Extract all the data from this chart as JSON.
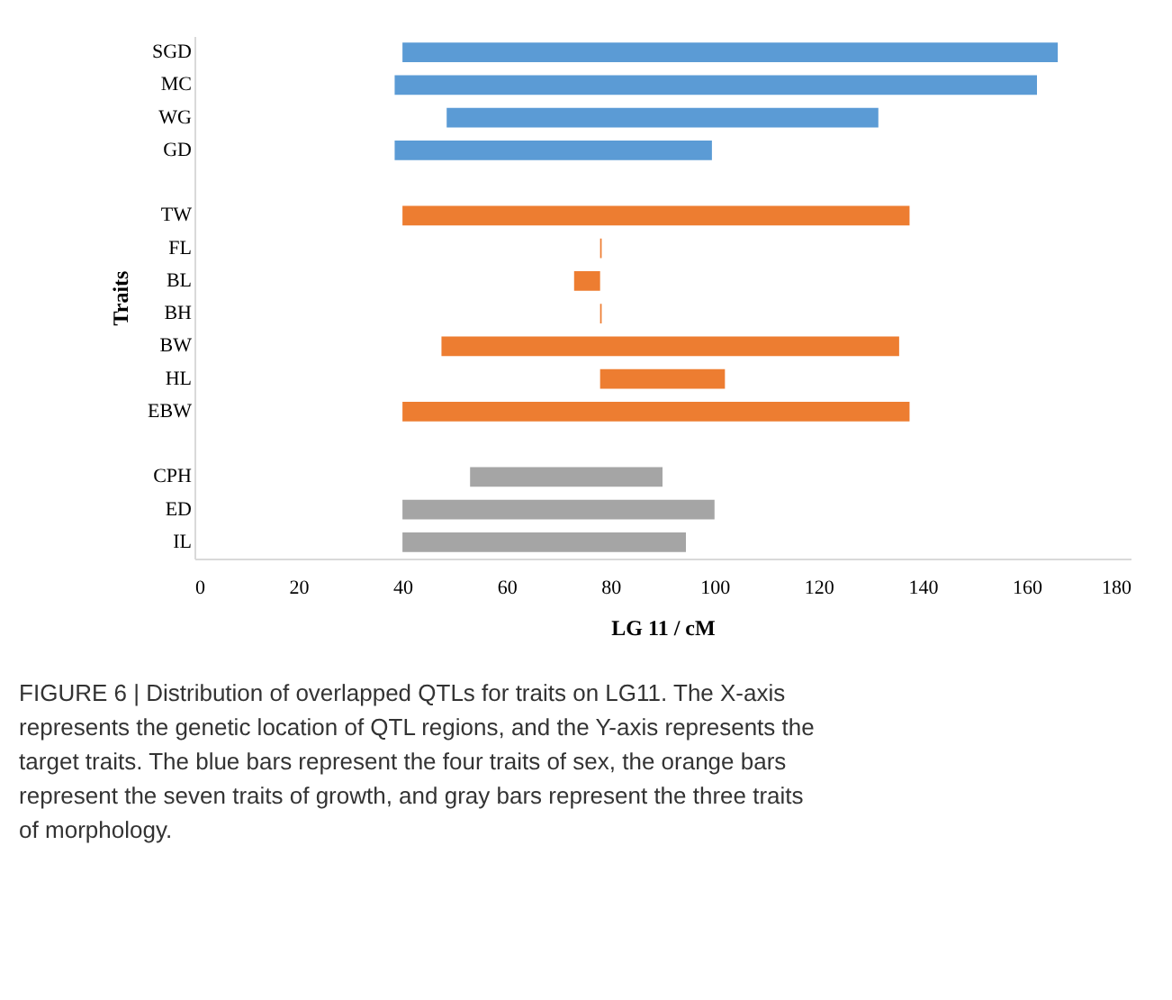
{
  "chart_data": {
    "type": "bar",
    "orientation": "horizontal",
    "xlabel": "LG 11 / cM",
    "ylabel": "Traits",
    "categories": [
      "SGD",
      "MC",
      "WG",
      "GD",
      null,
      "TW",
      "FL",
      "BL",
      "BH",
      "BW",
      "HL",
      "EBW",
      null,
      "CPH",
      "ED",
      "IL"
    ],
    "base": [
      40,
      38.5,
      48.5,
      38.5,
      null,
      40,
      78,
      73,
      78,
      47.5,
      78,
      40,
      null,
      53,
      40,
      40
    ],
    "values": [
      126,
      123.5,
      83,
      61,
      null,
      97.5,
      0.3,
      5,
      0.3,
      88,
      24,
      97.5,
      null,
      37,
      60,
      54.5
    ],
    "colors": [
      "#5b9bd5",
      "#5b9bd5",
      "#5b9bd5",
      "#5b9bd5",
      null,
      "#ed7d31",
      "#ed7d31",
      "#ed7d31",
      "#ed7d31",
      "#ed7d31",
      "#ed7d31",
      "#ed7d31",
      null,
      "#a5a5a5",
      "#a5a5a5",
      "#a5a5a5"
    ],
    "xlim": [
      0,
      180
    ],
    "xticks": [
      0,
      20,
      40,
      60,
      80,
      100,
      120,
      140,
      160,
      180
    ],
    "grid": false,
    "annotations": [
      "FIGURE 6 | Distribution of overlapped QTLs for traits on LG11. The X-axis represents the genetic location of QTL regions, and the Y-axis represents the target traits. The blue bars represent the four traits of sex, the orange bars represent the seven traits of growth, and gray bars represent the three traits of morphology."
    ]
  }
}
